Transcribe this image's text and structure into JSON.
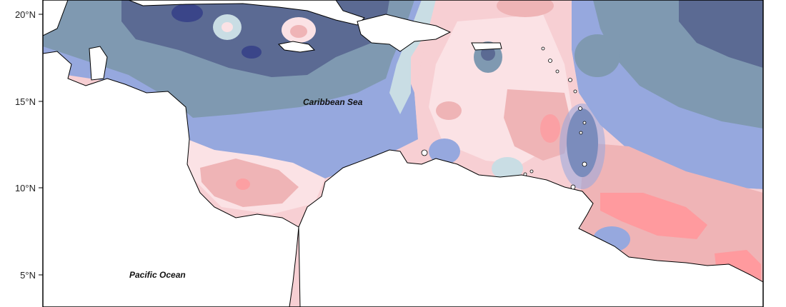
{
  "lat_axis": {
    "ticks": [
      {
        "label": "20°N"
      },
      {
        "label": "15°N"
      },
      {
        "label": "10°N"
      },
      {
        "label": "5°N"
      }
    ]
  },
  "labels": {
    "caribbean_sea": "Caribbean Sea",
    "pacific_ocean": "Pacific Ocean"
  },
  "palette": {
    "navy": "#5b6a93",
    "slate": "#7f99b1",
    "periwinkle": "#96a8de",
    "pale_blue": "#c9dde4",
    "pale_pink": "#fbe2e5",
    "light_pink": "#f7cfd3",
    "rose": "#efb4b6",
    "salmon": "#ff9a9e",
    "deep_blue": "#3a4589",
    "land": "#ffffff",
    "coast": "#000000"
  }
}
